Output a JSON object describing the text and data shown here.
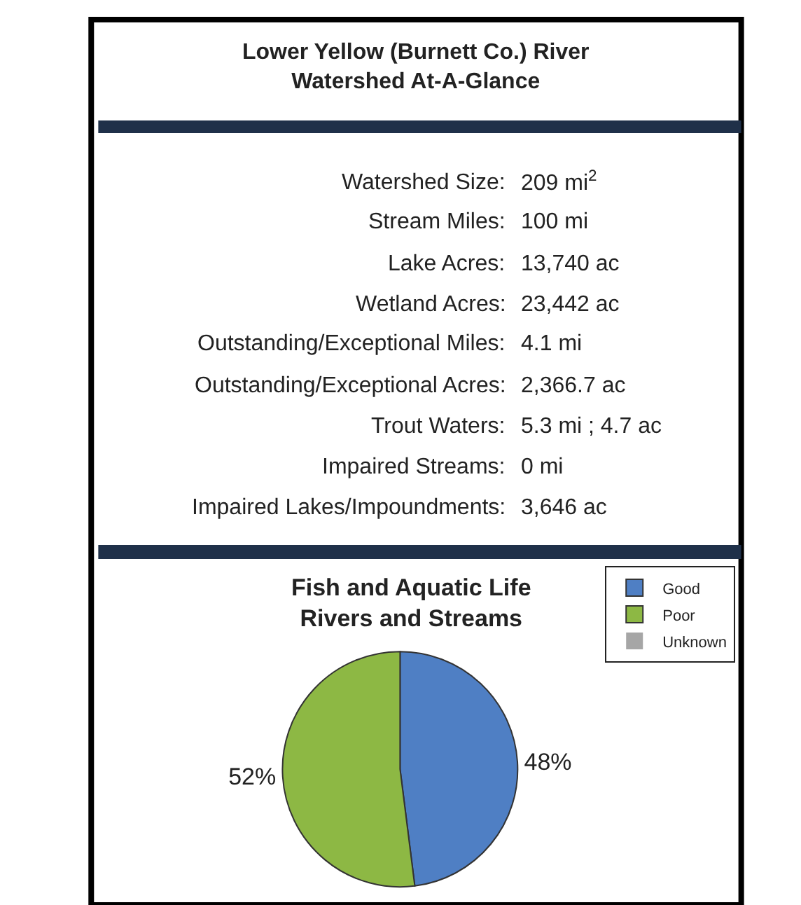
{
  "chart_data": [
    {
      "type": "other",
      "title": "Lower Yellow (Burnett Co.) River\nWatershed At-A-Glance",
      "annotations": [
        "Watershed Size: 209 mi$^{2}$",
        "Stream Miles: 100 mi",
        "Lake Acres: 13,740 ac",
        "Wetland Acres: 23,442 ac",
        "Outstanding/Exceptional Miles: 4.1 mi",
        "Outstanding/Exceptional Acres: 2,366.7 ac",
        "Trout Waters: 5.3 mi ; 4.7 ac",
        "Impaired Streams: 0 mi",
        "Impaired Lakes/Impoundments: 3,646 ac"
      ]
    },
    {
      "type": "pie",
      "title": "Fish and Aquatic Life\nRivers and Streams",
      "categories": [
        "Good",
        "Poor",
        "Unknown"
      ],
      "values": [
        48,
        52,
        0
      ],
      "colors": [
        "#4f7fc4",
        "#8db844",
        "#a6a6a6"
      ],
      "value_labels": [
        "48%",
        "52%",
        null
      ],
      "legend": "top right"
    }
  ]
}
